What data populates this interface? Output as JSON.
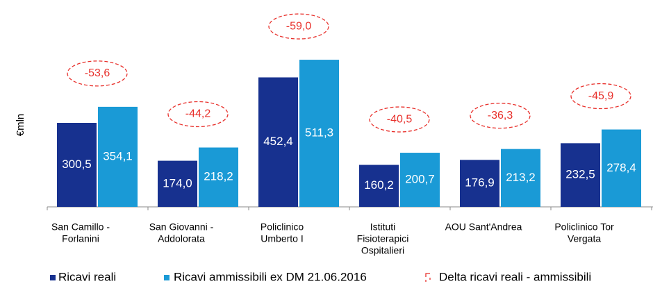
{
  "chart_data": {
    "type": "bar",
    "ylabel": "€mln",
    "categories": [
      [
        "San Camillo -",
        "Forlanini"
      ],
      [
        "San Giovanni -",
        "Addolorata"
      ],
      [
        "Policlinico",
        "Umberto I"
      ],
      [
        "Istituti",
        "Fisioterapici",
        "Ospitalieri"
      ],
      [
        "AOU Sant'Andrea"
      ],
      [
        "Policlinico Tor",
        "Vergata"
      ]
    ],
    "series": [
      {
        "name": "Ricavi reali",
        "color": "#17318f",
        "values": [
          300.5,
          174.0,
          452.4,
          160.2,
          176.9,
          232.5
        ],
        "value_labels": [
          "300,5",
          "174,0",
          "452,4",
          "160,2",
          "176,9",
          "232,5"
        ]
      },
      {
        "name": "Ricavi ammissibili ex DM 21.06.2016",
        "color": "#1a9ad6",
        "values": [
          354.1,
          218.2,
          511.3,
          200.7,
          213.2,
          278.4
        ],
        "value_labels": [
          "354,1",
          "218,2",
          "511,3",
          "200,7",
          "213,2",
          "278,4"
        ]
      }
    ],
    "delta": {
      "name": "Delta ricavi reali - ammissibili",
      "color": "#e8302b",
      "values": [
        -53.6,
        -44.2,
        -59.0,
        -40.5,
        -36.3,
        -45.9
      ],
      "value_labels": [
        "-53,6",
        "-44,2",
        "-59,0",
        "-40,5",
        "-36,3",
        "-45,9"
      ]
    },
    "ylim": [
      20,
      530
    ]
  }
}
